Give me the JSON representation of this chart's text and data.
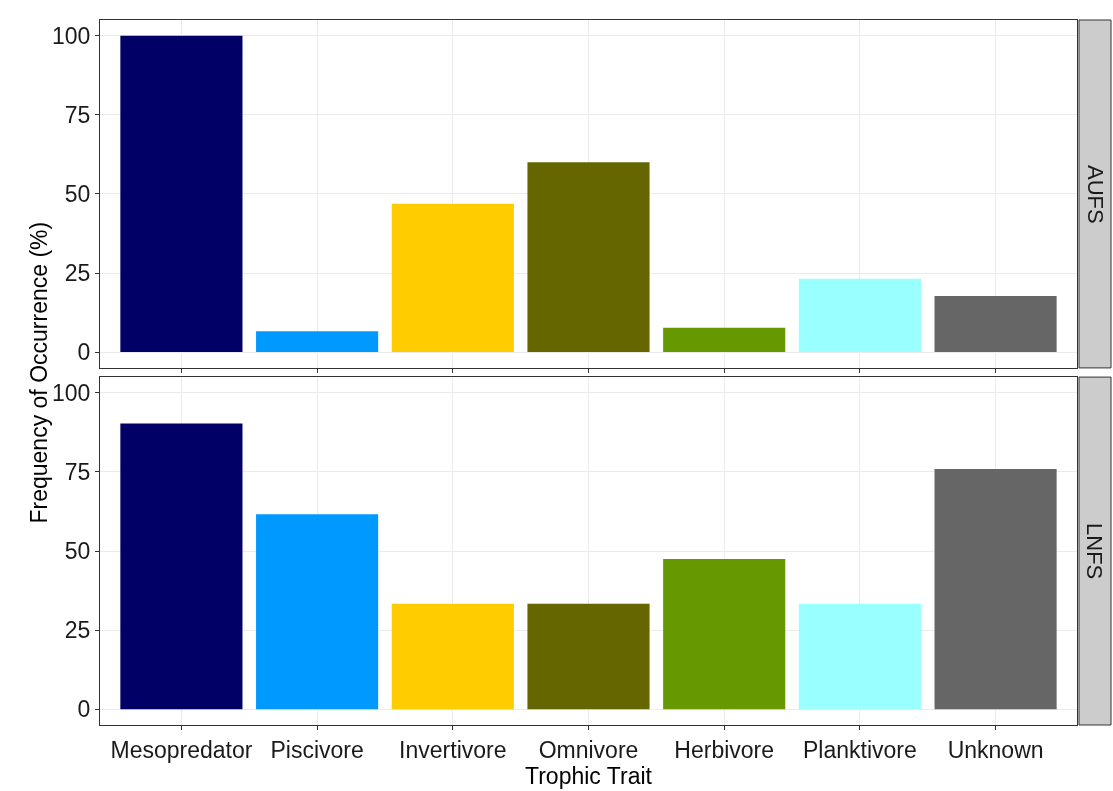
{
  "chart_data": [
    {
      "type": "bar",
      "title": "AUFS",
      "ylabel": "Frequency of Occurrence (%)",
      "categories": [
        "Mesopredator",
        "Piscivore",
        "Invertivore",
        "Omnivore",
        "Herbivore",
        "Planktivore",
        "Unknown"
      ],
      "values": [
        100,
        6.6,
        46.9,
        60,
        7.7,
        23.2,
        17.7
      ],
      "colors": [
        "#000066",
        "#0099ff",
        "#ffcc00",
        "#666600",
        "#669900",
        "#99ffff",
        "#666666"
      ],
      "ylim": [
        -5,
        105
      ],
      "yticks": [
        0,
        25,
        50,
        75,
        100
      ],
      "grid": true,
      "tick_labels": "y"
    },
    {
      "type": "bar",
      "title": "LNFS",
      "xlabel": "Trophic Trait",
      "categories": [
        "Mesopredator",
        "Piscivore",
        "Invertivore",
        "Omnivore",
        "Herbivore",
        "Planktivore",
        "Unknown"
      ],
      "values": [
        90.3,
        61.6,
        33.3,
        33.3,
        47.5,
        33.3,
        75.9
      ],
      "colors": [
        "#000066",
        "#0099ff",
        "#ffcc00",
        "#666600",
        "#669900",
        "#99ffff",
        "#666666"
      ],
      "ylim": [
        -5,
        105
      ],
      "yticks": [
        0,
        25,
        50,
        75,
        100
      ],
      "grid": true
    }
  ]
}
